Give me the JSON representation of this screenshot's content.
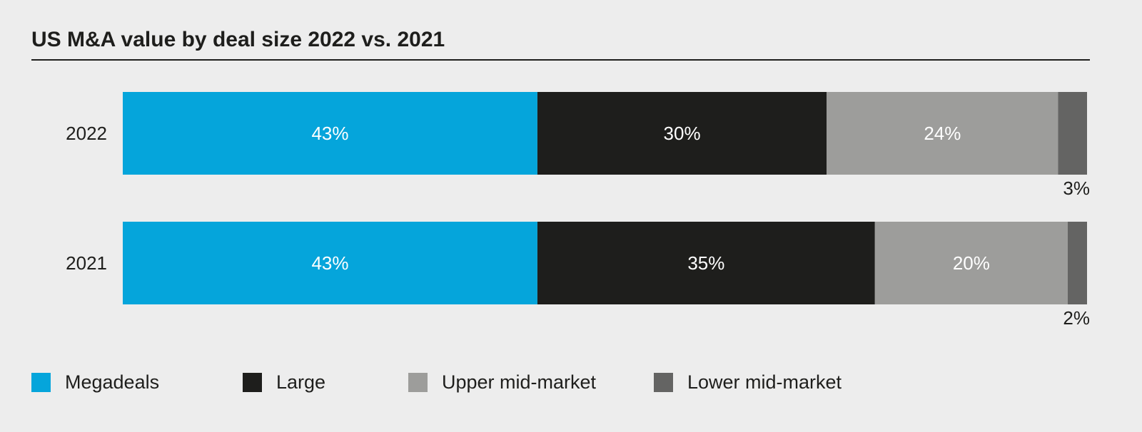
{
  "chart_data": {
    "type": "stacked-bar-horizontal",
    "title": "US M&A value by deal size 2022 vs. 2021",
    "categories": [
      "2022",
      "2021"
    ],
    "xlim": [
      0,
      100
    ],
    "legend": "bottom",
    "series": [
      {
        "name": "Megadeals",
        "color": "#05a5db",
        "values": [
          43,
          43
        ],
        "value_labels": [
          "43%",
          "43%"
        ]
      },
      {
        "name": "Large",
        "color": "#1e1e1c",
        "values": [
          30,
          35
        ],
        "value_labels": [
          "30%",
          "35%"
        ]
      },
      {
        "name": "Upper mid-market",
        "color": "#9d9d9b",
        "values": [
          24,
          20
        ],
        "value_labels": [
          "24%",
          "20%"
        ]
      },
      {
        "name": "Lower mid-market",
        "color": "#646463",
        "values": [
          3,
          2
        ],
        "value_labels": [
          "3%",
          "2%"
        ]
      }
    ]
  }
}
